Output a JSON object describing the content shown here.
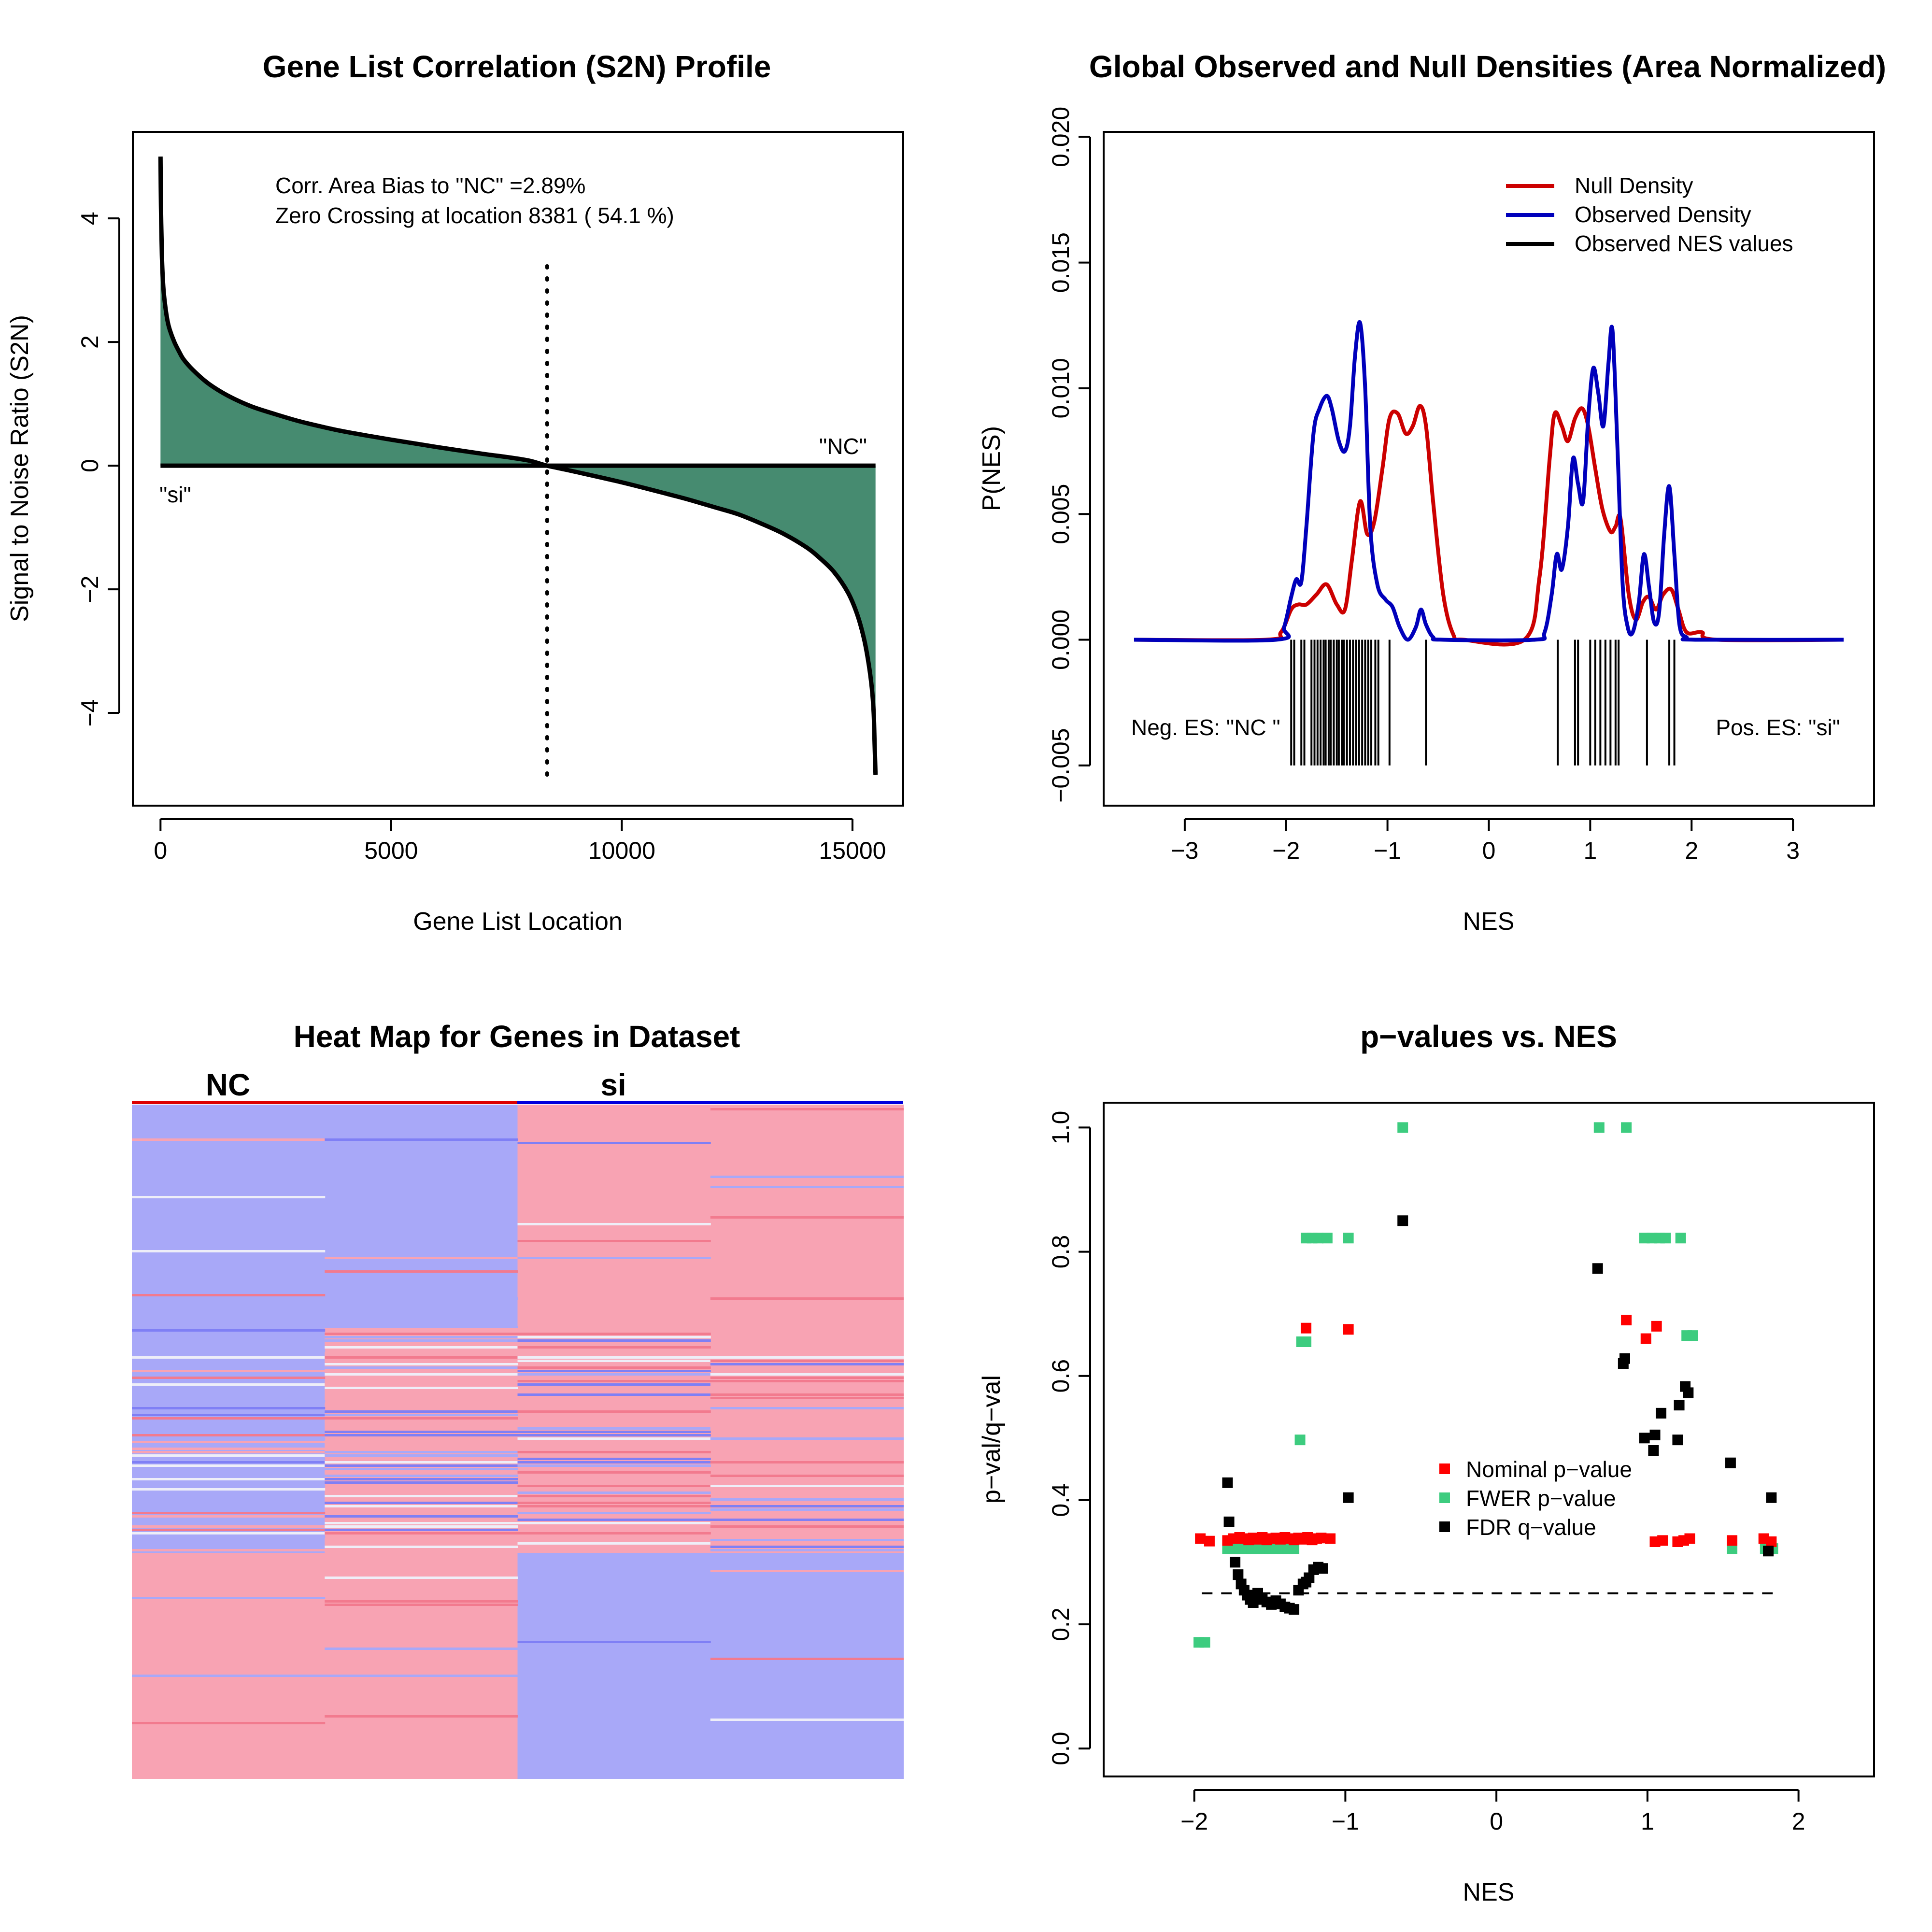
{
  "colors": {
    "s2n_fill": "#468B70",
    "null_density": "#CC0000",
    "observed_density": "#0000BB",
    "nes_ticks": "#000000",
    "nominal_p": "#FF0000",
    "fwer_p": "#3DCC7F",
    "fdr_q": "#000000",
    "heat_blue": "#A8A8F8",
    "heat_blue_dark": "#7F7FF5",
    "heat_red": "#F8A3B3",
    "heat_red_dark": "#F27A8E",
    "heat_light": "#EEEEF8",
    "phenotype_nc_bar": "#DD0000",
    "phenotype_si_bar": "#0000DD"
  },
  "chart_data": [
    {
      "id": "s2n",
      "type": "area",
      "title": "Gene List Correlation (S2N) Profile",
      "xlabel": "Gene List Location",
      "ylabel": "Signal to Noise Ratio (S2N)",
      "xlim": [
        -600,
        16100
      ],
      "ylim": [
        -5.5,
        5.4
      ],
      "xticks": [
        0,
        5000,
        10000,
        15000
      ],
      "xtick_labels": [
        "0",
        "5000",
        "10000",
        "15000"
      ],
      "yticks": [
        -4,
        -2,
        0,
        2,
        4
      ],
      "ytick_labels": [
        "−4",
        "−2",
        "0",
        "2",
        "4"
      ],
      "x": [
        0,
        10,
        30,
        60,
        100,
        150,
        200,
        300,
        400,
        500,
        700,
        1000,
        1300,
        1600,
        2000,
        2500,
        3000,
        3500,
        4000,
        5000,
        6000,
        7000,
        7500,
        8000,
        8381,
        9000,
        10000,
        11000,
        11500,
        12000,
        12500,
        13000,
        13500,
        14000,
        14300,
        14600,
        14900,
        15100,
        15250,
        15350,
        15420,
        15460,
        15480,
        15500
      ],
      "y": [
        5.0,
        4.2,
        3.4,
        2.9,
        2.6,
        2.35,
        2.2,
        2.0,
        1.85,
        1.72,
        1.55,
        1.35,
        1.2,
        1.08,
        0.95,
        0.83,
        0.72,
        0.63,
        0.55,
        0.42,
        0.3,
        0.19,
        0.14,
        0.08,
        0.0,
        -0.1,
        -0.27,
        -0.46,
        -0.56,
        -0.67,
        -0.78,
        -0.93,
        -1.1,
        -1.32,
        -1.5,
        -1.72,
        -2.05,
        -2.4,
        -2.8,
        -3.2,
        -3.6,
        -4.0,
        -4.5,
        -5.0
      ],
      "zero_crossing": 8381,
      "dotted_line_range": [
        -5.0,
        3.3
      ],
      "annotations": [
        "Corr. Area Bias to \"NC\" =2.89%",
        "Zero Crossing at location  8381  ( 54.1  %)"
      ],
      "label_right": "\"NC\"",
      "label_left": "\"si\""
    },
    {
      "id": "density",
      "type": "line",
      "title": "Global Observed and Null Densities (Area Normalized)",
      "xlabel": "NES",
      "ylabel": "P(NES)",
      "xlim": [
        -3.8,
        3.8
      ],
      "ylim": [
        -0.0066,
        0.0202
      ],
      "xticks": [
        -3,
        -2,
        -1,
        0,
        1,
        2,
        3
      ],
      "xtick_labels": [
        "−3",
        "−2",
        "−1",
        "0",
        "1",
        "2",
        "3"
      ],
      "yticks": [
        -0.005,
        0.0,
        0.005,
        0.01,
        0.015,
        0.02
      ],
      "ytick_labels": [
        "−0.005",
        "0.000",
        "0.005",
        "0.010",
        "0.015",
        "0.020"
      ],
      "legend": [
        "Null Density",
        "Observed Density",
        "Observed NES values"
      ],
      "legend_position": "top-right",
      "series": [
        {
          "name": "Null Density",
          "x": [
            -3.5,
            -2.2,
            -2.05,
            -1.95,
            -1.88,
            -1.8,
            -1.7,
            -1.6,
            -1.5,
            -1.42,
            -1.35,
            -1.27,
            -1.2,
            -1.13,
            -1.05,
            -0.98,
            -0.9,
            -0.82,
            -0.75,
            -0.68,
            -0.62,
            -0.55,
            -0.45,
            -0.35,
            -0.25,
            0.35,
            0.5,
            0.6,
            0.65,
            0.72,
            0.78,
            0.85,
            0.92,
            0.98,
            1.05,
            1.12,
            1.2,
            1.25,
            1.3,
            1.38,
            1.45,
            1.52,
            1.58,
            1.65,
            1.72,
            1.8,
            1.87,
            1.95,
            2.1,
            2.25,
            3.5
          ],
          "y": [
            0.0,
            0.0,
            0.0003,
            0.0012,
            0.0014,
            0.0014,
            0.0018,
            0.0022,
            0.0014,
            0.0012,
            0.0032,
            0.0055,
            0.0042,
            0.0047,
            0.0068,
            0.0088,
            0.009,
            0.0082,
            0.0085,
            0.0093,
            0.0085,
            0.0055,
            0.0018,
            0.0002,
            0.0,
            0.0,
            0.0025,
            0.0072,
            0.009,
            0.0085,
            0.0079,
            0.0088,
            0.0092,
            0.0085,
            0.0068,
            0.0052,
            0.0043,
            0.0045,
            0.0048,
            0.0018,
            0.0008,
            0.0015,
            0.0017,
            0.0012,
            0.0018,
            0.002,
            0.0012,
            0.0003,
            0.0003,
            0.0,
            0.0
          ]
        },
        {
          "name": "Observed Density",
          "x": [
            -3.5,
            -2.1,
            -2.02,
            -1.95,
            -1.9,
            -1.85,
            -1.8,
            -1.73,
            -1.67,
            -1.6,
            -1.55,
            -1.48,
            -1.42,
            -1.37,
            -1.32,
            -1.27,
            -1.22,
            -1.17,
            -1.1,
            -1.02,
            -0.95,
            -0.88,
            -0.8,
            -0.72,
            -0.67,
            -0.62,
            -0.55,
            -0.45,
            0.45,
            0.55,
            0.62,
            0.67,
            0.72,
            0.78,
            0.83,
            0.88,
            0.93,
            0.98,
            1.03,
            1.08,
            1.13,
            1.18,
            1.22,
            1.27,
            1.32,
            1.37,
            1.42,
            1.48,
            1.53,
            1.58,
            1.63,
            1.68,
            1.73,
            1.78,
            1.83,
            1.88,
            1.95,
            2.05,
            3.5
          ],
          "y": [
            0.0,
            0.0,
            0.0005,
            0.0017,
            0.0024,
            0.0023,
            0.0045,
            0.0082,
            0.0092,
            0.0097,
            0.0092,
            0.0079,
            0.0075,
            0.0085,
            0.0113,
            0.0126,
            0.01,
            0.0045,
            0.0022,
            0.0016,
            0.0013,
            0.0005,
            0.0,
            0.0005,
            0.0012,
            0.0006,
            0.0001,
            0.0,
            0.0,
            0.0003,
            0.0018,
            0.0034,
            0.0028,
            0.0045,
            0.0072,
            0.0062,
            0.0055,
            0.0088,
            0.0108,
            0.0098,
            0.0085,
            0.011,
            0.0123,
            0.0075,
            0.0022,
            0.0005,
            0.0003,
            0.0015,
            0.0034,
            0.0021,
            0.0007,
            0.0011,
            0.0042,
            0.0061,
            0.0034,
            0.0006,
            0.0001,
            0.0,
            0.0
          ]
        }
      ],
      "nes_rug": [
        -1.95,
        -1.92,
        -1.85,
        -1.82,
        -1.75,
        -1.72,
        -1.69,
        -1.66,
        -1.63,
        -1.61,
        -1.58,
        -1.56,
        -1.53,
        -1.5,
        -1.48,
        -1.45,
        -1.43,
        -1.4,
        -1.37,
        -1.34,
        -1.31,
        -1.28,
        -1.25,
        -1.22,
        -1.19,
        -1.16,
        -1.12,
        -1.09,
        -0.98,
        -0.62,
        0.68,
        0.85,
        0.88,
        1.0,
        1.05,
        1.1,
        1.15,
        1.2,
        1.25,
        1.28,
        1.56,
        1.78,
        1.83
      ],
      "rug_range": [
        -0.005,
        0.0
      ],
      "label_neg": "Neg. ES: \"NC \"",
      "label_pos": "Pos. ES: \"si\""
    },
    {
      "id": "heatmap",
      "type": "heatmap",
      "title": "Heat Map for Genes in Dataset",
      "column_groups": [
        "NC",
        "si"
      ]
    },
    {
      "id": "pvalues",
      "type": "scatter",
      "title": "p−values vs. NES",
      "xlabel": "NES",
      "ylabel": "p−val/q−val",
      "xlim": [
        -2.6,
        2.5
      ],
      "ylim": [
        -0.045,
        1.04
      ],
      "xticks": [
        -2,
        -1,
        0,
        1,
        2
      ],
      "xtick_labels": [
        "−2",
        "−1",
        "0",
        "1",
        "2"
      ],
      "yticks": [
        0.0,
        0.2,
        0.4,
        0.6,
        0.8,
        1.0
      ],
      "ytick_labels": [
        "0.0",
        "0.2",
        "0.4",
        "0.6",
        "0.8",
        "1.0"
      ],
      "reference_line": {
        "y": 0.25,
        "x_range": [
          -1.95,
          1.83
        ]
      },
      "legend_position": "center",
      "series": [
        {
          "name": "Nominal p−value",
          "x": [
            -1.96,
            -1.9,
            -1.78,
            -1.74,
            -1.7,
            -1.67,
            -1.64,
            -1.61,
            -1.58,
            -1.55,
            -1.52,
            -1.49,
            -1.46,
            -1.43,
            -1.4,
            -1.37,
            -1.34,
            -1.31,
            -1.28,
            -1.25,
            -1.22,
            -1.19,
            -1.16,
            -1.1,
            -1.26,
            -0.98,
            0.86,
            0.99,
            1.06,
            1.05,
            1.1,
            1.2,
            1.24,
            1.28,
            1.56,
            1.77,
            1.82
          ],
          "y": [
            0.338,
            0.334,
            0.335,
            0.338,
            0.34,
            0.338,
            0.336,
            0.339,
            0.337,
            0.34,
            0.336,
            0.338,
            0.339,
            0.337,
            0.34,
            0.338,
            0.336,
            0.339,
            0.337,
            0.34,
            0.336,
            0.338,
            0.339,
            0.338,
            0.677,
            0.675,
            0.69,
            0.66,
            0.68,
            0.333,
            0.335,
            0.333,
            0.335,
            0.338,
            0.335,
            0.338,
            0.333
          ]
        },
        {
          "name": "FWER p−value",
          "x": [
            -1.97,
            -1.93,
            -1.78,
            -1.74,
            -1.7,
            -1.66,
            -1.62,
            -1.58,
            -1.54,
            -1.5,
            -1.46,
            -1.42,
            -1.38,
            -1.34,
            -1.3,
            -1.29,
            -1.26,
            -1.26,
            -1.22,
            -1.18,
            -1.12,
            -0.98,
            -0.62,
            0.68,
            0.86,
            0.98,
            1.03,
            1.08,
            1.12,
            1.22,
            1.26,
            1.3,
            1.56,
            1.78,
            1.83
          ],
          "y": [
            0.171,
            0.171,
            0.322,
            0.322,
            0.322,
            0.322,
            0.322,
            0.322,
            0.322,
            0.322,
            0.322,
            0.322,
            0.322,
            0.322,
            0.497,
            0.655,
            0.655,
            0.822,
            0.822,
            0.822,
            0.822,
            0.822,
            1.0,
            1.0,
            1.0,
            0.822,
            0.822,
            0.822,
            0.822,
            0.822,
            0.665,
            0.665,
            0.322,
            0.322,
            0.322
          ]
        },
        {
          "name": "FDR q−value",
          "x": [
            -1.78,
            -1.77,
            -1.73,
            -1.71,
            -1.69,
            -1.67,
            -1.65,
            -1.63,
            -1.61,
            -1.58,
            -1.55,
            -1.52,
            -1.49,
            -1.46,
            -1.43,
            -1.4,
            -1.37,
            -1.34,
            -1.31,
            -1.28,
            -1.26,
            -1.24,
            -1.21,
            -1.18,
            -1.15,
            -0.98,
            -0.62,
            0.67,
            0.84,
            0.85,
            0.98,
            1.04,
            1.09,
            1.05,
            1.2,
            1.21,
            1.25,
            1.27,
            1.55,
            1.8,
            1.82
          ],
          "y": [
            0.428,
            0.365,
            0.3,
            0.28,
            0.265,
            0.255,
            0.247,
            0.24,
            0.235,
            0.25,
            0.24,
            0.236,
            0.232,
            0.238,
            0.233,
            0.228,
            0.226,
            0.224,
            0.255,
            0.265,
            0.268,
            0.275,
            0.288,
            0.292,
            0.29,
            0.404,
            0.85,
            0.773,
            0.62,
            0.628,
            0.5,
            0.48,
            0.54,
            0.505,
            0.497,
            0.553,
            0.583,
            0.573,
            0.46,
            0.318,
            0.404
          ]
        }
      ]
    }
  ]
}
